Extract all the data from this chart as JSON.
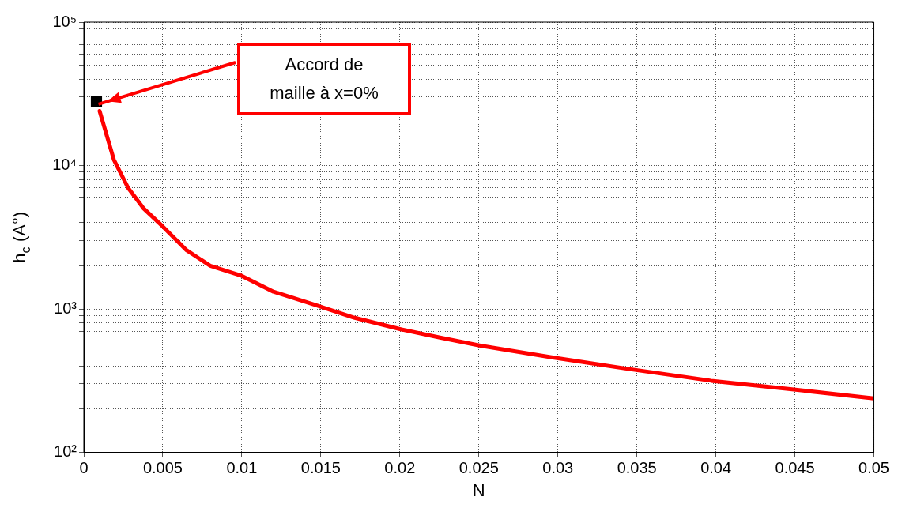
{
  "chart_data": {
    "type": "line",
    "xlabel": "N",
    "ylabel": "h$_{c}$ (A°)",
    "log": "y",
    "grid": true,
    "legend": false,
    "xlim": [
      0,
      0.05
    ],
    "xticks": [
      0,
      0.005,
      0.01,
      0.015,
      0.02,
      0.025,
      0.03,
      0.035,
      0.04,
      0.045,
      0.05
    ],
    "ylim": [
      100,
      100000
    ],
    "yticks": [
      {
        "value": 100,
        "label": "10²"
      },
      {
        "value": 200,
        "label": null
      },
      {
        "value": 300,
        "label": null
      },
      {
        "value": 400,
        "label": null
      },
      {
        "value": 500,
        "label": null
      },
      {
        "value": 600,
        "label": null
      },
      {
        "value": 700,
        "label": null
      },
      {
        "value": 800,
        "label": null
      },
      {
        "value": 900,
        "label": null
      },
      {
        "value": 1000,
        "label": "10³"
      },
      {
        "value": 2000,
        "label": null
      },
      {
        "value": 3000,
        "label": null
      },
      {
        "value": 4000,
        "label": null
      },
      {
        "value": 5000,
        "label": null
      },
      {
        "value": 6000,
        "label": null
      },
      {
        "value": 7000,
        "label": null
      },
      {
        "value": 8000,
        "label": null
      },
      {
        "value": 9000,
        "label": null
      },
      {
        "value": 10000,
        "label": "10⁴"
      },
      {
        "value": 20000,
        "label": null
      },
      {
        "value": 30000,
        "label": null
      },
      {
        "value": 40000,
        "label": null
      },
      {
        "value": 50000,
        "label": null
      },
      {
        "value": 60000,
        "label": null
      },
      {
        "value": 70000,
        "label": null
      },
      {
        "value": 80000,
        "label": null
      },
      {
        "value": 90000,
        "label": null
      },
      {
        "value": 100000,
        "label": "10⁵"
      }
    ],
    "series": [
      {
        "color": "#ff0000",
        "marker": "none",
        "line_style": "solid",
        "x": [
          0.001,
          0.0019,
          0.0028,
          0.0038,
          0.005,
          0.0065,
          0.008,
          0.01,
          0.012,
          0.0146,
          0.0171,
          0.0201,
          0.0226,
          0.0251,
          0.0296,
          0.0346,
          0.0397,
          0.0447,
          0.05
        ],
        "values": [
          24000,
          11000,
          7000,
          5000,
          3760,
          2570,
          2000,
          1700,
          1320,
          1070,
          870,
          720,
          630,
          555,
          460,
          380,
          316,
          276,
          238
        ]
      },
      {
        "type": "scatter",
        "color": "#000000",
        "marker": "square",
        "x": [
          0.0008
        ],
        "values": [
          28000
        ]
      }
    ],
    "annotations": [
      "Accord de maille à x=0%"
    ]
  }
}
